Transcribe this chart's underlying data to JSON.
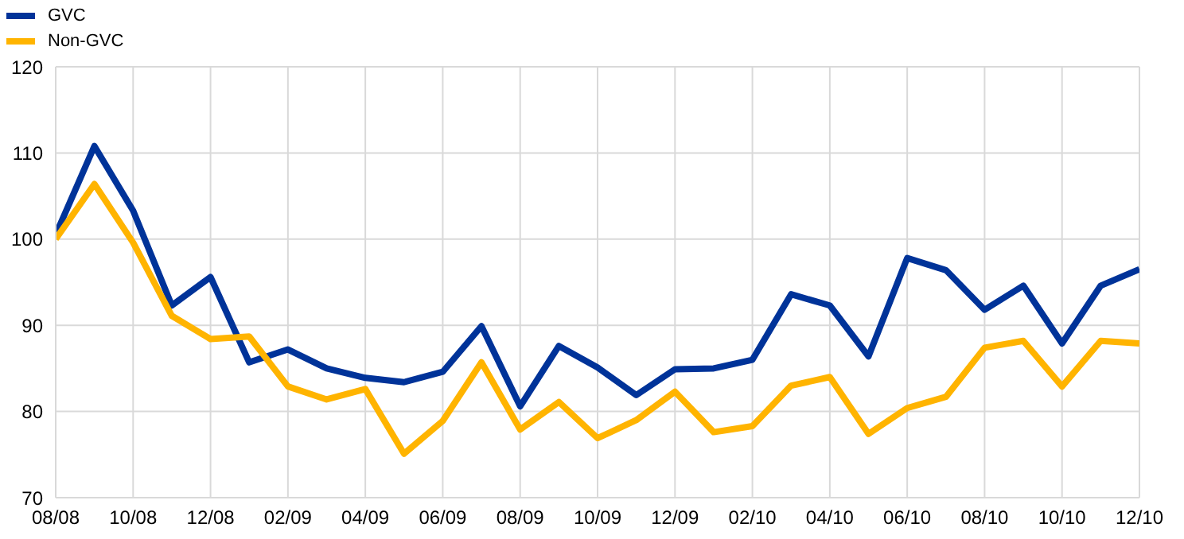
{
  "chart_data": {
    "type": "line",
    "categories": [
      "08/08",
      null,
      "10/08",
      null,
      "12/08",
      null,
      "02/09",
      null,
      "04/09",
      null,
      "06/09",
      null,
      "08/09",
      null,
      "10/09",
      null,
      "12/09",
      null,
      "02/10",
      null,
      "04/10",
      null,
      "06/10",
      null,
      "08/10",
      null,
      "10/10",
      null,
      "12/10"
    ],
    "series": [
      {
        "name": "GVC",
        "color": "#003399",
        "values": [
          100.5,
          110.8,
          103.3,
          92.3,
          95.6,
          85.7,
          87.2,
          85.0,
          83.9,
          83.4,
          84.6,
          89.9,
          80.6,
          87.6,
          85.1,
          81.9,
          84.9,
          85.0,
          86.0,
          93.6,
          92.3,
          86.4,
          97.8,
          96.4,
          91.8,
          94.6,
          87.9,
          94.6,
          96.5
        ]
      },
      {
        "name": "Non-GVC",
        "color": "#ffb400",
        "values": [
          100,
          106.4,
          99.6,
          91.1,
          88.4,
          88.7,
          82.9,
          81.4,
          82.6,
          75.1,
          78.9,
          85.7,
          77.9,
          81.1,
          76.9,
          79.0,
          82.3,
          77.6,
          78.3,
          83.0,
          84.0,
          77.4,
          80.4,
          81.7,
          87.4,
          88.2,
          82.9,
          88.2,
          87.9
        ]
      }
    ],
    "ylim": [
      70,
      120
    ],
    "yticks": [
      70,
      80,
      90,
      100,
      110,
      120
    ],
    "grid": true,
    "legend": "top left",
    "line_style": "solid",
    "marker": "none"
  }
}
